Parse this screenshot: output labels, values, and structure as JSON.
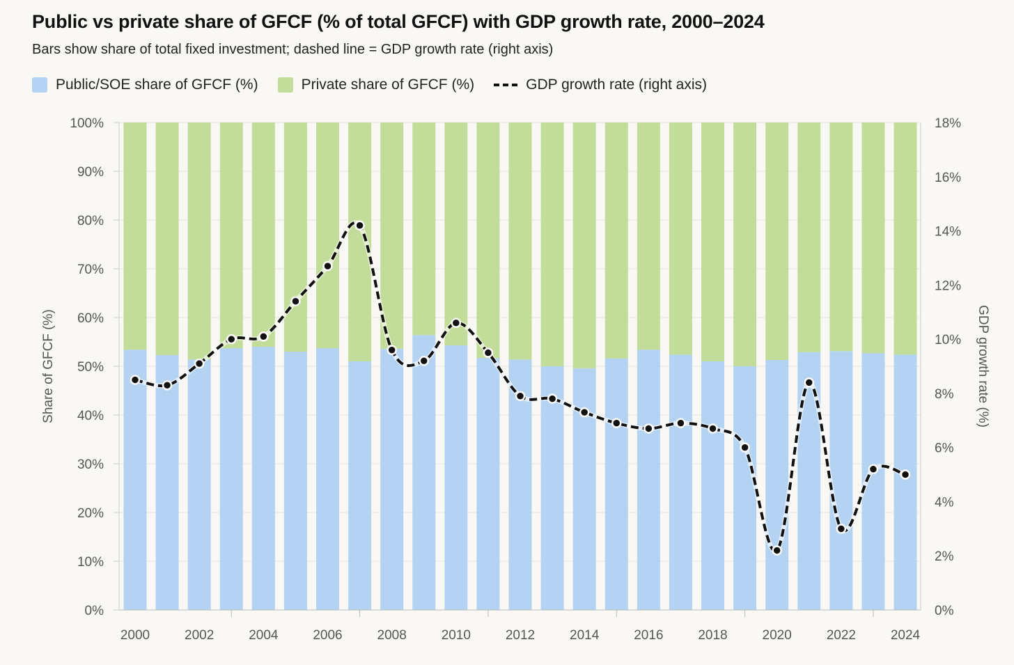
{
  "chart_data": {
    "type": "bar",
    "title": "Public vs private share of GFCF (% of total GFCF) with GDP growth rate, 2000–2024",
    "subtitle": "Bars show share of total fixed investment; dashed line = GDP growth rate (right axis)",
    "ylabel": "Share of GFCF (%)",
    "y2label": "GDP growth rate (%)",
    "ylim": [
      0,
      100
    ],
    "y2lim": [
      0,
      18
    ],
    "yticks": [
      "0%",
      "10%",
      "20%",
      "30%",
      "40%",
      "50%",
      "60%",
      "70%",
      "80%",
      "90%",
      "100%"
    ],
    "y2ticks": [
      "0%",
      "2%",
      "4%",
      "6%",
      "8%",
      "10%",
      "12%",
      "14%",
      "16%",
      "18%"
    ],
    "xticks": [
      "2000",
      "2002",
      "2004",
      "2006",
      "2008",
      "2010",
      "2012",
      "2014",
      "2016",
      "2018",
      "2020",
      "2022",
      "2024"
    ],
    "legend_position": "top-left",
    "grid": true,
    "categories": [
      2000,
      2001,
      2002,
      2003,
      2004,
      2005,
      2006,
      2007,
      2008,
      2009,
      2010,
      2011,
      2012,
      2013,
      2014,
      2015,
      2016,
      2017,
      2018,
      2019,
      2020,
      2021,
      2022,
      2023,
      2024
    ],
    "series": [
      {
        "name": "Public/SOE share of GFCF (%)",
        "color": "#b4d3f2",
        "stacked": true,
        "values": [
          53.4,
          52.3,
          51.4,
          53.7,
          54.0,
          53.0,
          53.7,
          51.0,
          53.6,
          56.4,
          54.3,
          51.7,
          51.4,
          50.0,
          49.6,
          51.6,
          53.4,
          52.4,
          51.0,
          50.0,
          51.3,
          52.9,
          53.1,
          52.7,
          52.4
        ]
      },
      {
        "name": "Private share of GFCF (%)",
        "color": "#c2dd9a",
        "stacked": true,
        "values": [
          46.6,
          47.7,
          48.6,
          46.3,
          46.0,
          47.0,
          46.3,
          49.0,
          46.4,
          43.6,
          45.7,
          48.3,
          48.6,
          50.0,
          50.4,
          48.4,
          46.6,
          47.6,
          49.0,
          50.0,
          48.7,
          47.1,
          46.9,
          47.3,
          47.6
        ]
      },
      {
        "name": "GDP growth rate (right axis)",
        "type": "line",
        "axis": "right",
        "color": "#111111",
        "values": [
          8.5,
          8.3,
          9.1,
          10.0,
          10.1,
          11.4,
          12.7,
          14.2,
          9.6,
          9.2,
          10.6,
          9.5,
          7.9,
          7.8,
          7.3,
          6.9,
          6.7,
          6.9,
          6.7,
          6.0,
          2.2,
          8.4,
          3.0,
          5.2,
          5.0
        ]
      }
    ]
  }
}
